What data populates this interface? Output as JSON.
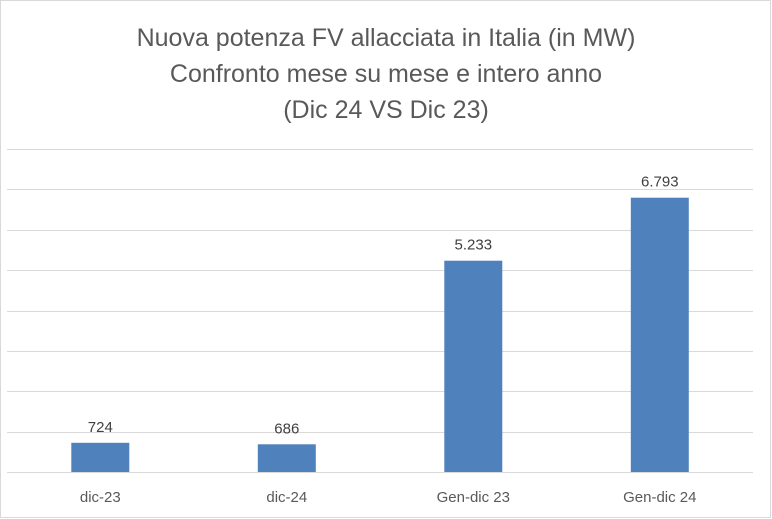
{
  "chart_data": {
    "type": "bar",
    "title_lines": [
      "Nuova potenza FV allacciata in Italia (in MW)",
      "Confronto mese su mese e intero anno",
      "(Dic 24 VS Dic 23)"
    ],
    "categories": [
      "dic-23",
      "dic-24",
      "Gen-dic 23",
      "Gen-dic 24"
    ],
    "values": [
      724,
      686,
      5233,
      6793
    ],
    "value_labels": [
      "724",
      "686",
      "5.233",
      "6.793"
    ],
    "ylim": [
      0,
      8000
    ],
    "ytick_step": 1000,
    "grid": true,
    "bar_color": "#4f81bd",
    "xlabel": "",
    "ylabel": ""
  }
}
